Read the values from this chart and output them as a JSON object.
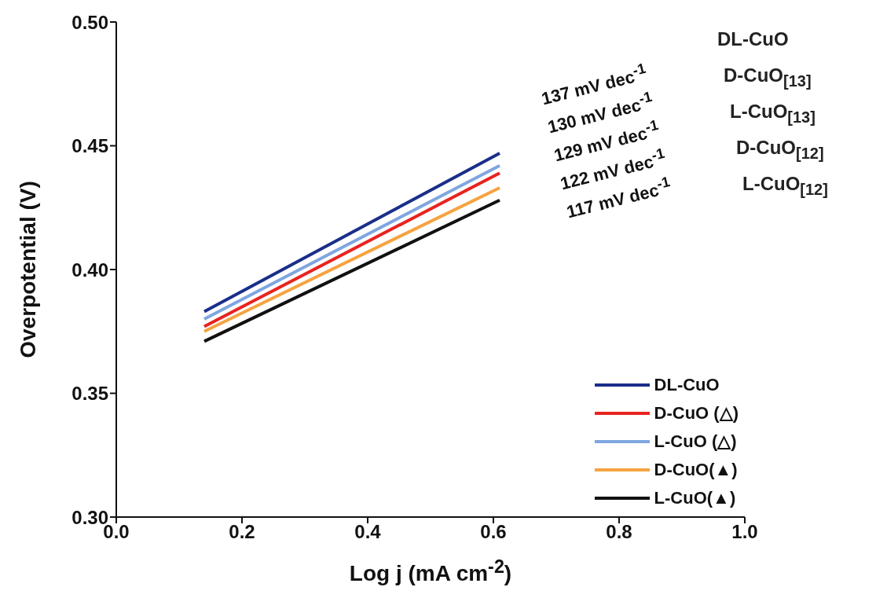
{
  "chart_data": {
    "type": "line",
    "xlabel": "Log j (mA cm$^{-2}$)",
    "ylabel": "Overpotential (V)",
    "x": [
      0.14,
      0.61
    ],
    "series": [
      {
        "name": "DL-CuO",
        "color": "#1a2e8a",
        "values": [
          0.383,
          0.447
        ]
      },
      {
        "name": "D-CuO (△)",
        "color": "#e8231f",
        "values": [
          0.377,
          0.439
        ]
      },
      {
        "name": "L-CuO (△)",
        "color": "#7ea6e0",
        "values": [
          0.38,
          0.442
        ]
      },
      {
        "name": "D-CuO(▲)",
        "color": "#f5a340",
        "values": [
          0.375,
          0.433
        ]
      },
      {
        "name": "L-CuO(▲)",
        "color": "#111111",
        "values": [
          0.371,
          0.428
        ]
      }
    ],
    "xlim": [
      0,
      1.0
    ],
    "xticks": [
      {
        "value": 0,
        "label": "0.0"
      },
      0.2,
      0.4,
      0.6,
      0.8,
      {
        "value": 1,
        "label": "1.0"
      }
    ],
    "ylim": [
      0.3,
      0.5
    ],
    "yticks": [
      {
        "value": 0.3,
        "label": "0.30"
      },
      0.35,
      {
        "value": 0.4,
        "label": "0.40"
      },
      0.45,
      {
        "value": 0.5,
        "label": "0.50"
      }
    ],
    "legend": "bottom right",
    "marker": "none",
    "line_style": "solid",
    "grid": false,
    "annotations": [
      "137 mV dec$^{-1}$",
      "130 mV dec$^{-1}$",
      "129 mV dec$^{-1}$",
      "122 mV dec$^{-1}$",
      "117 mV dec$^{-1}$",
      "DL-CuO",
      "D-CuO$_{[13]}$",
      "L-CuO$_{[13]}$",
      "D-CuO$_{[12]}$",
      "L-CuO$_{[12]}$"
    ]
  }
}
